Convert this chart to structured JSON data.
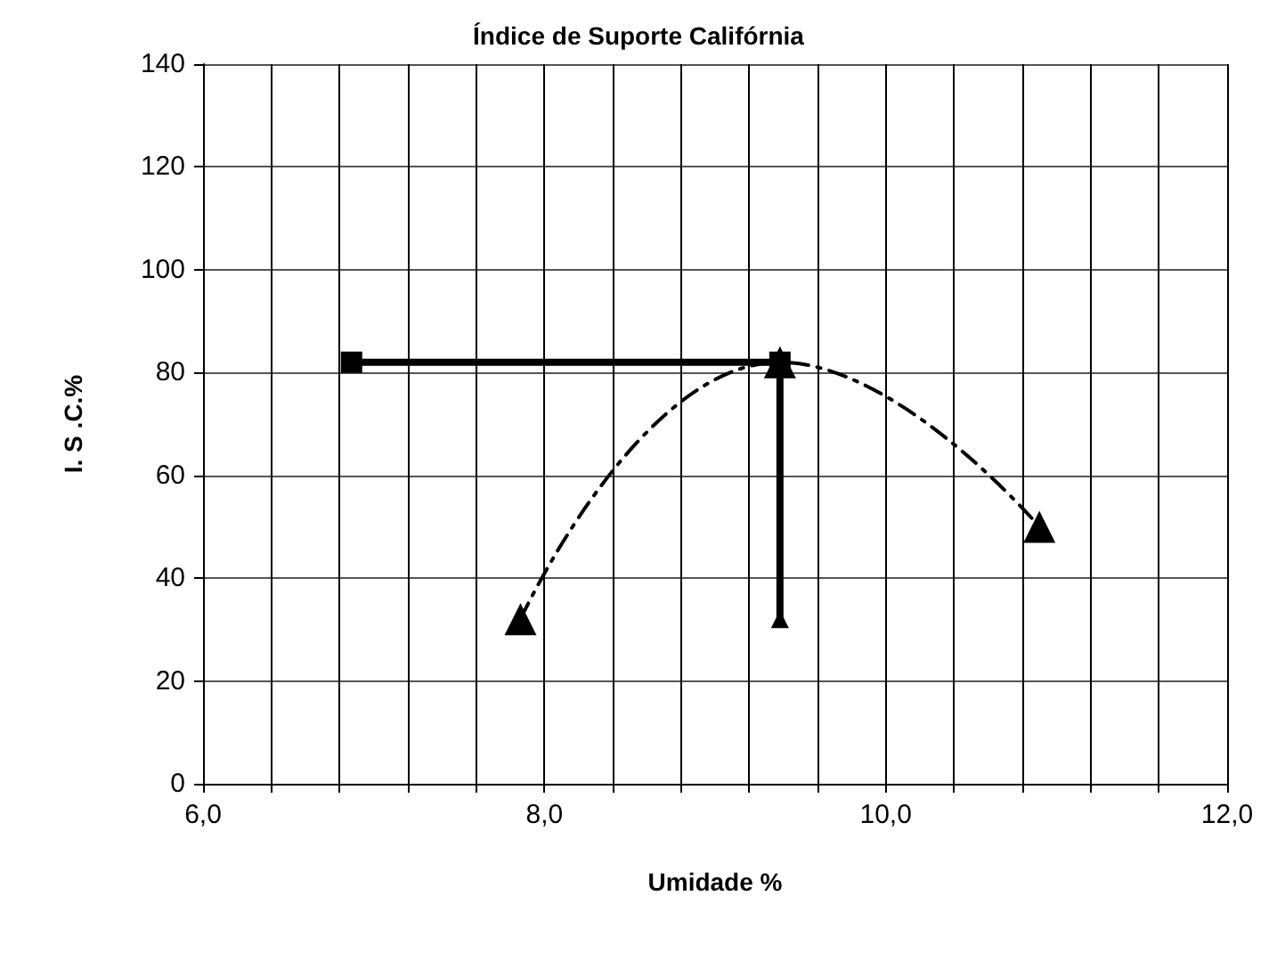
{
  "chart_data": {
    "type": "line",
    "title": "Índice de Suporte Califórnia",
    "xlabel": "Umidade %",
    "ylabel": "I. S .C.%",
    "xlim": [
      6,
      12
    ],
    "ylim": [
      0,
      140
    ],
    "xticks": [
      {
        "value": 6,
        "label": "6,0"
      },
      {
        "value": 6.4,
        "label": null
      },
      {
        "value": 6.8,
        "label": null
      },
      {
        "value": 7.2,
        "label": null
      },
      {
        "value": 7.6,
        "label": null
      },
      {
        "value": 8,
        "label": "8,0"
      },
      {
        "value": 8.4,
        "label": null
      },
      {
        "value": 8.8,
        "label": null
      },
      {
        "value": 9.2,
        "label": null
      },
      {
        "value": 9.6,
        "label": null
      },
      {
        "value": 10,
        "label": "10,0"
      },
      {
        "value": 10.4,
        "label": null
      },
      {
        "value": 10.8,
        "label": null
      },
      {
        "value": 11.2,
        "label": null
      },
      {
        "value": 11.6,
        "label": null
      },
      {
        "value": 12,
        "label": "12,0"
      }
    ],
    "yticks": [
      0,
      20,
      40,
      60,
      80,
      100,
      120,
      140
    ],
    "grid": true,
    "series": [
      {
        "color": "#000000",
        "x": [
          7.86,
          9.38,
          10.9
        ],
        "values": [
          32,
          82,
          50
        ],
        "marker": "triangle",
        "line_style": "dashed"
      },
      {
        "color": "#000000",
        "x": [
          6.87,
          9.38
        ],
        "values": [
          82,
          82
        ],
        "marker": "square",
        "line_style": "solid"
      },
      {
        "color": "#000000",
        "x": [
          9.38,
          9.38
        ],
        "values": [
          82,
          32
        ],
        "marker": "triangle",
        "line_style": "solid"
      }
    ]
  }
}
